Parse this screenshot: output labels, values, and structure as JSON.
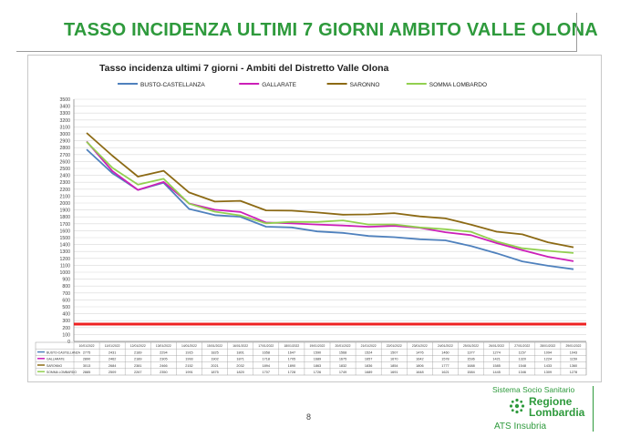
{
  "slide": {
    "title": "TASSO INCIDENZA ULTIMI 7 GIORNI AMBITO VALLE OLONA",
    "page_number": "8"
  },
  "logo": {
    "subtitle": "Sistema Socio Sanitario",
    "line1": "Regione",
    "line2": "Lombardia",
    "line3": "ATS Insubria"
  },
  "colors": {
    "brand_green": "#2e9a3c",
    "threshold": "#ee2222"
  },
  "chart_data": {
    "type": "line",
    "title": "Tasso incidenza ultimi 7 giorni - Ambiti del Distretto Valle Olona",
    "xlabel": "",
    "ylabel": "",
    "ylim": [
      0,
      3500
    ],
    "ytick_step": 100,
    "grid": true,
    "legend_position": "top",
    "categories": [
      "10/01/2022",
      "11/01/2022",
      "12/01/2022",
      "13/01/2022",
      "14/01/2022",
      "15/01/2022",
      "16/01/2022",
      "17/01/2022",
      "18/01/2022",
      "19/01/2022",
      "20/01/2022",
      "21/01/2022",
      "22/01/2022",
      "23/01/2022",
      "24/01/2022",
      "25/01/2022",
      "26/01/2022",
      "27/01/2022",
      "28/01/2022",
      "29/01/2022"
    ],
    "series": [
      {
        "name": "BUSTO-CASTELLANZA",
        "color": "#4f81bd",
        "values": [
          2775,
          2431,
          2189,
          2294,
          1915,
          1825,
          1801,
          1658,
          1647,
          1590,
          1568,
          1524,
          1507,
          1476,
          1460,
          1377,
          1274,
          1157,
          1094,
          1043
        ]
      },
      {
        "name": "GALLARATE",
        "color": "#cc1fb8",
        "values": [
          2890,
          2462,
          2189,
          2305,
          1993,
          1902,
          1871,
          1718,
          1705,
          1689,
          1675,
          1657,
          1670,
          1642,
          1578,
          1536,
          1421,
          1320,
          1224,
          1159
        ]
      },
      {
        "name": "SARONNO",
        "color": "#8c6a14",
        "values": [
          3013,
          2684,
          2381,
          2466,
          2152,
          2021,
          2032,
          1894,
          1890,
          1863,
          1832,
          1836,
          1854,
          1806,
          1777,
          1688,
          1585,
          1548,
          1433,
          1360
        ]
      },
      {
        "name": "SOMMA LOMBARDO",
        "color": "#92d050",
        "values": [
          2885,
          2509,
          2267,
          2350,
          1991,
          1875,
          1820,
          1707,
          1728,
          1726,
          1749,
          1689,
          1691,
          1648,
          1621,
          1584,
          1445,
          1346,
          1309,
          1278
        ]
      }
    ],
    "threshold": {
      "value": 250
    }
  }
}
